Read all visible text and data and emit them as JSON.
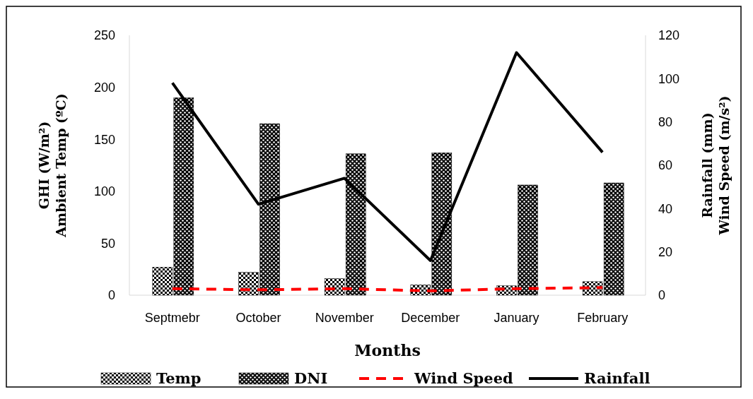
{
  "chart_data": {
    "type": "bar",
    "xlabel": "Months",
    "ylabel": "GHI (W/m²)\nAmbient Temp (ºC)",
    "y2label": "Rainfall (mm)\nWind Speed (m/s²)",
    "categories": [
      "Septmebr",
      "October",
      "November",
      "December",
      "January",
      "February"
    ],
    "series": [
      {
        "name": "Temp",
        "color": "#000000",
        "values": [
          27,
          22,
          16,
          10,
          9,
          13
        ]
      },
      {
        "name": "DNI",
        "color": "#000000",
        "values": [
          190,
          165,
          136,
          137,
          106,
          108
        ]
      },
      {
        "name": "Wind Speed",
        "type": "line",
        "axis": "y2",
        "color": "#ff0000",
        "line_style": "dashed",
        "values": [
          3,
          2.5,
          3,
          2,
          3,
          3.5
        ]
      },
      {
        "name": "Rainfall",
        "type": "line",
        "axis": "y2",
        "color": "#000000",
        "line_style": "solid",
        "values": [
          98,
          42,
          54,
          16,
          112,
          66
        ]
      }
    ],
    "ylim": [
      0,
      250
    ],
    "yticks": [
      0,
      50,
      100,
      150,
      200,
      250
    ],
    "y2lim": [
      0,
      120
    ],
    "y2ticks": [
      0,
      20,
      40,
      60,
      80,
      100,
      120
    ],
    "grid": false,
    "legend": "bottom",
    "marker": "none"
  }
}
